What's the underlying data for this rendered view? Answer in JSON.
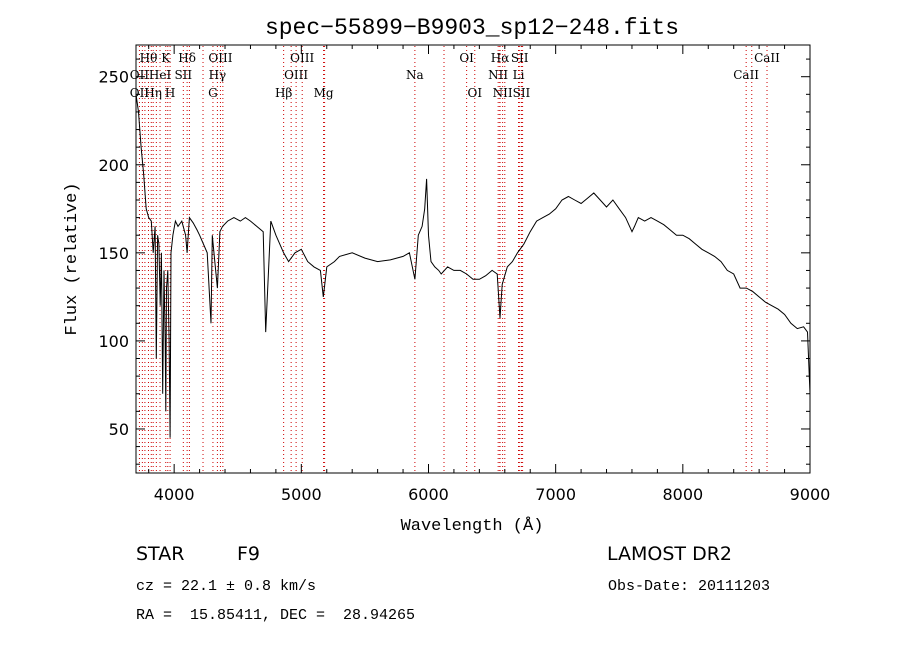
{
  "chart_data": {
    "type": "line",
    "title": "spec−55899−B9903_sp12−248.fits",
    "xlabel": "Wavelength (Å)",
    "ylabel": "Flux (relative)",
    "xlim": [
      3700,
      9000
    ],
    "ylim": [
      25,
      268
    ],
    "xticks": [
      4000,
      5000,
      6000,
      7000,
      8000,
      9000
    ],
    "yticks": [
      50,
      100,
      150,
      200,
      250
    ],
    "grid": false,
    "line_color": "#000000",
    "marker_color": "#cc0000",
    "series": [
      {
        "x": [
          3700,
          3720,
          3740,
          3760,
          3780,
          3800,
          3820,
          3835,
          3850,
          3860,
          3870,
          3880,
          3890,
          3900,
          3910,
          3920,
          3930,
          3934,
          3940,
          3950,
          3960,
          3968,
          3975,
          3990,
          4010,
          4030,
          4060,
          4090,
          4102,
          4120,
          4150,
          4180,
          4200,
          4230,
          4260,
          4290,
          4300,
          4320,
          4340,
          4360,
          4380,
          4420,
          4470,
          4520,
          4560,
          4600,
          4650,
          4700,
          4720,
          4760,
          4800,
          4861,
          4900,
          4950,
          5000,
          5050,
          5100,
          5150,
          5173,
          5200,
          5260,
          5300,
          5400,
          5500,
          5600,
          5700,
          5800,
          5850,
          5893,
          5920,
          5950,
          5970,
          5985,
          6000,
          6020,
          6050,
          6080,
          6100,
          6150,
          6200,
          6250,
          6300,
          6350,
          6400,
          6450,
          6500,
          6540,
          6562,
          6580,
          6620,
          6660,
          6700,
          6750,
          6800,
          6850,
          6900,
          6950,
          7000,
          7050,
          7100,
          7150,
          7200,
          7250,
          7300,
          7350,
          7400,
          7450,
          7500,
          7550,
          7600,
          7620,
          7650,
          7700,
          7750,
          7800,
          7850,
          7900,
          7950,
          8000,
          8050,
          8100,
          8150,
          8200,
          8250,
          8300,
          8350,
          8400,
          8450,
          8500,
          8550,
          8600,
          8650,
          8700,
          8750,
          8800,
          8850,
          8900,
          8950,
          8980,
          9000
        ],
        "y": [
          240,
          230,
          210,
          195,
          175,
          170,
          168,
          150,
          165,
          90,
          160,
          155,
          120,
          150,
          70,
          140,
          100,
          60,
          130,
          140,
          100,
          45,
          150,
          160,
          168,
          165,
          168,
          160,
          150,
          170,
          167,
          163,
          160,
          155,
          150,
          110,
          160,
          145,
          130,
          162,
          165,
          168,
          170,
          168,
          170,
          168,
          165,
          162,
          105,
          168,
          160,
          150,
          145,
          150,
          152,
          145,
          142,
          140,
          125,
          142,
          145,
          148,
          150,
          147,
          145,
          146,
          148,
          150,
          135,
          160,
          165,
          175,
          192,
          160,
          145,
          142,
          140,
          138,
          142,
          140,
          140,
          138,
          135,
          135,
          137,
          140,
          138,
          113,
          132,
          142,
          145,
          150,
          155,
          162,
          168,
          170,
          172,
          175,
          180,
          182,
          180,
          178,
          181,
          184,
          180,
          176,
          180,
          175,
          170,
          162,
          165,
          170,
          168,
          170,
          168,
          166,
          163,
          160,
          160,
          158,
          155,
          152,
          150,
          148,
          145,
          140,
          138,
          130,
          130,
          128,
          125,
          122,
          120,
          118,
          115,
          110,
          107,
          108,
          105,
          70
        ]
      }
    ],
    "lines": [
      {
        "row": 1,
        "label": "Hθ",
        "x": 3798
      },
      {
        "row": 1,
        "label": "K",
        "x": 3934
      },
      {
        "row": 1,
        "label": "Hδ",
        "x": 4102
      },
      {
        "row": 1,
        "label": "OIII",
        "x": 4364
      },
      {
        "row": 1,
        "label": "OIII",
        "x": 5007
      },
      {
        "row": 1,
        "label": "OI",
        "x": 6300
      },
      {
        "row": 1,
        "label": "Hα",
        "x": 6563
      },
      {
        "row": 1,
        "label": "SII",
        "x": 6717
      },
      {
        "row": 1,
        "label": "CaII",
        "x": 8662
      },
      {
        "row": 2,
        "label": "OII",
        "x": 3727
      },
      {
        "row": 2,
        "label": "HeI",
        "x": 3889
      },
      {
        "row": 2,
        "label": "SII",
        "x": 4072
      },
      {
        "row": 2,
        "label": "Hγ",
        "x": 4340
      },
      {
        "row": 2,
        "label": "OIII",
        "x": 4959
      },
      {
        "row": 2,
        "label": "Na",
        "x": 5893
      },
      {
        "row": 2,
        "label": "NII",
        "x": 6548
      },
      {
        "row": 2,
        "label": "Li",
        "x": 6708
      },
      {
        "row": 2,
        "label": "CaII",
        "x": 8498
      },
      {
        "row": 3,
        "label": "OII",
        "x": 3727
      },
      {
        "row": 3,
        "label": "Hη",
        "x": 3835
      },
      {
        "row": 3,
        "label": "H",
        "x": 3968
      },
      {
        "row": 3,
        "label": "G",
        "x": 4305
      },
      {
        "row": 3,
        "label": "Hβ",
        "x": 4861
      },
      {
        "row": 3,
        "label": "Mg",
        "x": 5175
      },
      {
        "row": 3,
        "label": "OI",
        "x": 6364
      },
      {
        "row": 3,
        "label": "NII",
        "x": 6583
      },
      {
        "row": 3,
        "label": "SII",
        "x": 6731
      }
    ],
    "extra_lines": [
      3750,
      3770,
      3820,
      3860,
      3950,
      4120,
      4227,
      4383,
      4920,
      5183,
      6122,
      6560,
      6600,
      6740,
      8542
    ]
  },
  "info": {
    "object": "STAR",
    "subclass": "F9",
    "survey": "LAMOST DR2",
    "cz": "cz = 22.1 ± 0.8 km/s",
    "obs_date": "Obs-Date: 20111203",
    "radec": "RA =  15.85411, DEC =  28.94265"
  }
}
